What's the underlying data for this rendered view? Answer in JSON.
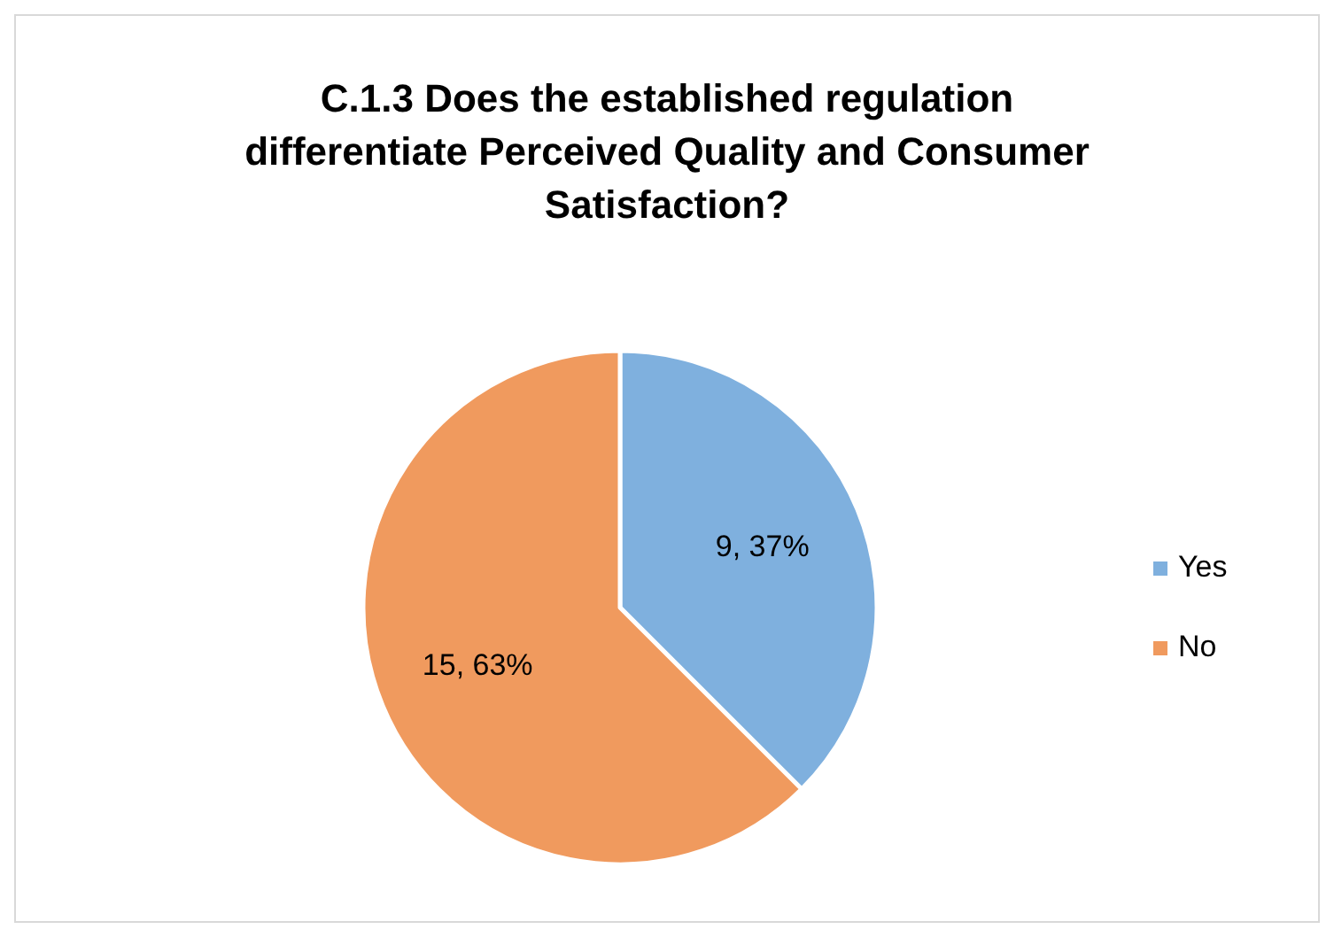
{
  "chart_data": {
    "type": "pie",
    "title": "C.1.3 Does the established regulation differentiate Perceived Quality and Consumer Satisfaction?",
    "categories": [
      "Yes",
      "No"
    ],
    "values": [
      9,
      15
    ],
    "value_labels": [
      "9, 37%",
      "15, 63%"
    ],
    "colors": [
      "#7fb0de",
      "#f09a5e"
    ],
    "legend": "right"
  }
}
